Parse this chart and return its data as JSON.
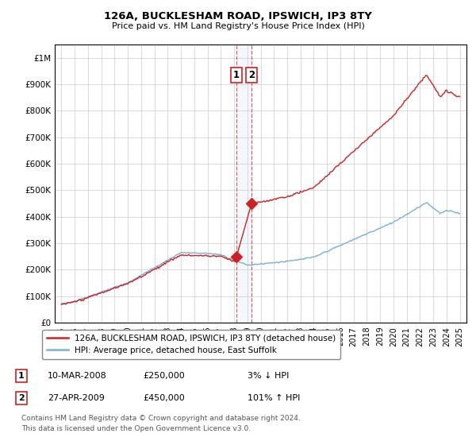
{
  "title1": "126A, BUCKLESHAM ROAD, IPSWICH, IP3 8TY",
  "title2": "Price paid vs. HM Land Registry's House Price Index (HPI)",
  "ylabel_ticks": [
    "£0",
    "£100K",
    "£200K",
    "£300K",
    "£400K",
    "£500K",
    "£600K",
    "£700K",
    "£800K",
    "£900K",
    "£1M"
  ],
  "ytick_values": [
    0,
    100000,
    200000,
    300000,
    400000,
    500000,
    600000,
    700000,
    800000,
    900000,
    1000000
  ],
  "xlim": [
    1994.5,
    2025.5
  ],
  "ylim": [
    0,
    1050000
  ],
  "legend1": "126A, BUCKLESHAM ROAD, IPSWICH, IP3 8TY (detached house)",
  "legend2": "HPI: Average price, detached house, East Suffolk",
  "sale1_date": 2008.19,
  "sale1_price": 250000,
  "sale2_date": 2009.32,
  "sale2_price": 450000,
  "hpi_color": "#7bafd4",
  "price_color": "#cc2222",
  "footnote1": "Contains HM Land Registry data © Crown copyright and database right 2024.",
  "footnote2": "This data is licensed under the Open Government Licence v3.0.",
  "row1_num": "1",
  "row1_date": "10-MAR-2008",
  "row1_price": "£250,000",
  "row1_change": "3% ↓ HPI",
  "row2_num": "2",
  "row2_date": "27-APR-2009",
  "row2_price": "£450,000",
  "row2_change": "101% ↑ HPI",
  "xtick_years": [
    1995,
    1996,
    1997,
    1998,
    1999,
    2000,
    2001,
    2002,
    2003,
    2004,
    2005,
    2006,
    2007,
    2008,
    2009,
    2010,
    2011,
    2012,
    2013,
    2014,
    2015,
    2016,
    2017,
    2018,
    2019,
    2020,
    2021,
    2022,
    2023,
    2024,
    2025
  ]
}
